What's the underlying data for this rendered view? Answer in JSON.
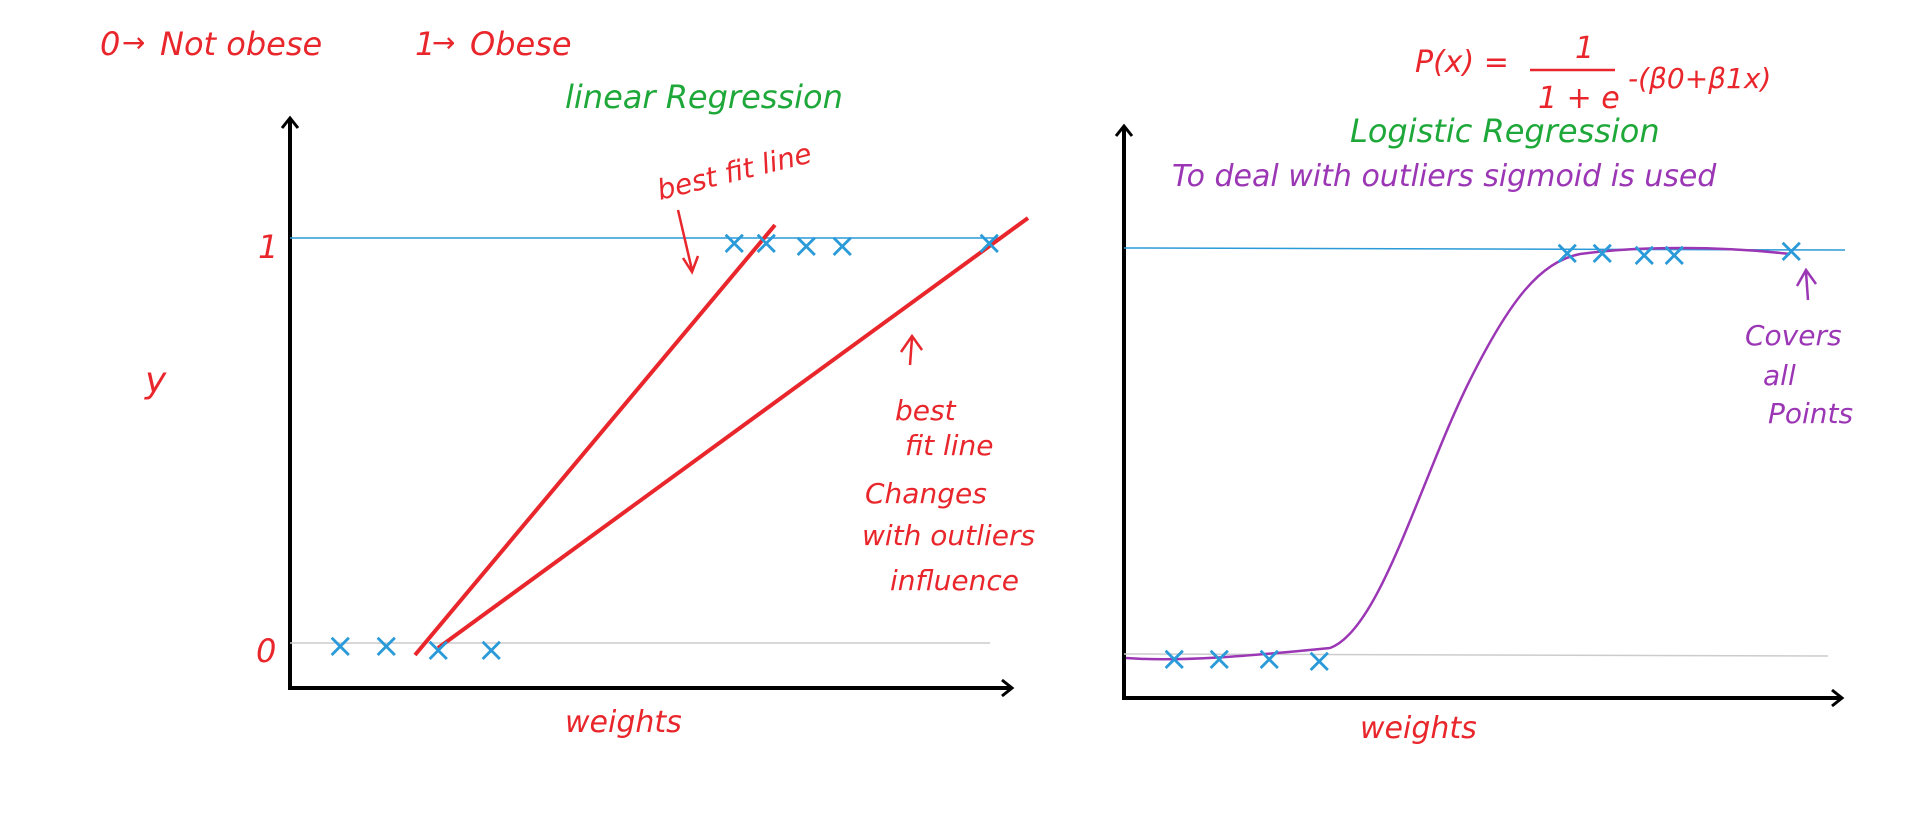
{
  "colors": {
    "red": "#e8262b",
    "green": "#1fa83a",
    "purple": "#9b36b5",
    "blue": "#2a9ad8",
    "axis": "#000000"
  },
  "legend_note": {
    "zero": "0",
    "zero_meaning": "Not obese",
    "one": "1",
    "one_meaning": "Obese"
  },
  "left_plot": {
    "title": "linear Regression",
    "y_axis_label": "y",
    "x_axis_label": "weights",
    "tick_0": "0",
    "tick_1": "1",
    "annotation_top": "best fit line",
    "annotation_right": [
      "best",
      "fit line",
      "Changes",
      "with outliers",
      "influence"
    ]
  },
  "right_plot": {
    "formula_lhs": "P(x) =",
    "formula_num": "1",
    "formula_den": "1 + e",
    "formula_exp": "-(β0+β1x)",
    "title": "Logistic Regression",
    "subtitle": "To deal with outliers sigmoid is used",
    "x_axis_label": "weights",
    "annotation": [
      "Covers",
      "all",
      "Points"
    ]
  }
}
